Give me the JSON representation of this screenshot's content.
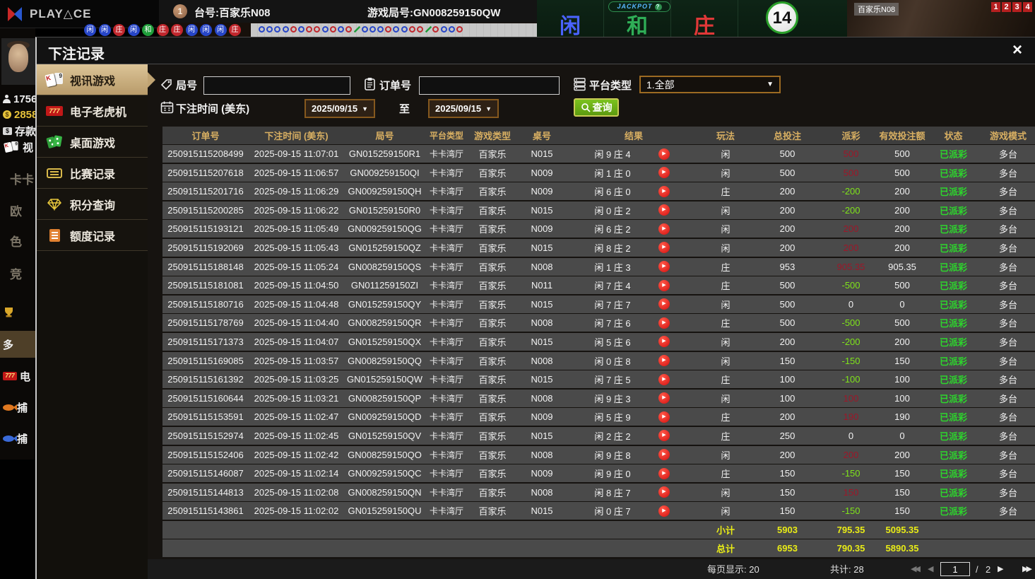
{
  "background": {
    "logo_text": "PLAY△CE",
    "table_label": "台号:百家乐N08",
    "round_label": "游戏局号:GN008259150QW",
    "round_badge": "1",
    "jackpot_label": "JACKPOT",
    "jackpot_hint": "?",
    "bet_zones": [
      {
        "label": "闲",
        "color": "#4a63ff"
      },
      {
        "label": "和",
        "color": "#2fae57"
      },
      {
        "label": "庄",
        "color": "#e03838"
      }
    ],
    "timer_value": "14",
    "video_label": "百家乐N08",
    "video_numbers": [
      "1",
      "2",
      "3",
      "4"
    ],
    "road": {
      "solid_beads": [
        {
          "color": "#2746c8",
          "char": "闲"
        },
        {
          "color": "#2746c8",
          "char": "闲"
        },
        {
          "color": "#c1272d",
          "char": "庄"
        },
        {
          "color": "#2746c8",
          "char": "闲"
        },
        {
          "color": "#1f9e3a",
          "char": "和"
        },
        {
          "color": "#c1272d",
          "char": "庄"
        },
        {
          "color": "#c1272d",
          "char": "庄"
        },
        {
          "color": "#2746c8",
          "char": "闲"
        },
        {
          "color": "#2746c8",
          "char": "闲"
        },
        {
          "color": "#2746c8",
          "char": "闲"
        },
        {
          "color": "#c1272d",
          "char": "庄"
        }
      ],
      "ring_beads": [
        "blue",
        "blue",
        "blue",
        "blue",
        "red",
        "blue",
        "red",
        "red",
        "blue",
        "red",
        "blue",
        "red",
        "green",
        "blue",
        "blue",
        "blue",
        "red",
        "blue",
        "blue",
        "red",
        "red",
        "green",
        "red",
        "blue",
        "blue",
        "red"
      ],
      "ring_colors": {
        "blue": "#2746c8",
        "red": "#c1272d",
        "green": "#1f9e3a"
      }
    },
    "left_nav": {
      "stats": [
        {
          "icon": "user",
          "label": "1756",
          "gold": false
        },
        {
          "icon": "coins",
          "label": "2858",
          "gold": true
        },
        {
          "icon": "deposit",
          "label": "存款",
          "gold": false
        }
      ],
      "items": [
        {
          "icon": "cards",
          "label": "视",
          "style": "bright"
        },
        {
          "icon": "",
          "label": "卡卡",
          "style": "dim"
        },
        {
          "icon": "",
          "label": "欧",
          "style": "dim"
        },
        {
          "icon": "",
          "label": "色",
          "style": "dim"
        },
        {
          "icon": "",
          "label": "竞",
          "style": "dim"
        },
        {
          "icon": "trophy",
          "label": "",
          "style": "dim"
        },
        {
          "icon": "",
          "label": "多",
          "style": "hl"
        },
        {
          "icon": "slot",
          "label": "电",
          "style": "bright"
        },
        {
          "icon": "fish-orange",
          "label": "捕",
          "style": "bright"
        },
        {
          "icon": "fish-blue",
          "label": "捕",
          "style": "bright"
        }
      ]
    }
  },
  "dialog": {
    "title": "下注记录",
    "close_glyph": "×",
    "sidebar": [
      {
        "label": "视讯游戏",
        "icon": "cards",
        "active": true
      },
      {
        "label": "电子老虎机",
        "icon": "slot777",
        "active": false
      },
      {
        "label": "桌面游戏",
        "icon": "dominoes",
        "active": false
      },
      {
        "label": "比赛记录",
        "icon": "ticket",
        "active": false
      },
      {
        "label": "积分查询",
        "icon": "diamond",
        "active": false
      },
      {
        "label": "额度记录",
        "icon": "document",
        "active": false
      }
    ],
    "filters": {
      "round_label": "局号",
      "round_value": "",
      "order_label": "订单号",
      "order_value": "",
      "platform_label": "平台类型",
      "platform_value": "1.全部",
      "caret": "▼",
      "time_label": "下注时间 (美东)",
      "date_from": "2025/09/15",
      "to_word": "至",
      "date_to": "2025/09/15",
      "search_label": "查询"
    },
    "table": {
      "headers": [
        "订单号",
        "下注时间 (美东)",
        "局号",
        "平台类型",
        "游戏类型",
        "桌号",
        "结果",
        "玩法",
        "总投注",
        "派彩",
        "有效投注额",
        "状态",
        "游戏模式"
      ],
      "play_glyph": "▶",
      "rows": [
        {
          "order": "250915115208499",
          "time": "2025-09-15 11:07:01",
          "round": "GN015259150R1",
          "platform": "卡卡湾厅",
          "game": "百家乐",
          "table": "N015",
          "result": "闲 9 庄 4",
          "bet": "闲",
          "total": "500",
          "payout": "500",
          "pc": "win",
          "valid": "500",
          "status": "已派彩",
          "mode": "多台"
        },
        {
          "order": "250915115207618",
          "time": "2025-09-15 11:06:57",
          "round": "GN009259150QI",
          "platform": "卡卡湾厅",
          "game": "百家乐",
          "table": "N009",
          "result": "闲 1 庄 0",
          "bet": "闲",
          "total": "500",
          "payout": "500",
          "pc": "win",
          "valid": "500",
          "status": "已派彩",
          "mode": "多台"
        },
        {
          "order": "250915115201716",
          "time": "2025-09-15 11:06:29",
          "round": "GN009259150QH",
          "platform": "卡卡湾厅",
          "game": "百家乐",
          "table": "N009",
          "result": "闲 6 庄 0",
          "bet": "庄",
          "total": "200",
          "payout": "-200",
          "pc": "loss",
          "valid": "200",
          "status": "已派彩",
          "mode": "多台"
        },
        {
          "order": "250915115200285",
          "time": "2025-09-15 11:06:22",
          "round": "GN015259150R0",
          "platform": "卡卡湾厅",
          "game": "百家乐",
          "table": "N015",
          "result": "闲 0 庄 2",
          "bet": "闲",
          "total": "200",
          "payout": "-200",
          "pc": "loss",
          "valid": "200",
          "status": "已派彩",
          "mode": "多台"
        },
        {
          "order": "250915115193121",
          "time": "2025-09-15 11:05:49",
          "round": "GN009259150QG",
          "platform": "卡卡湾厅",
          "game": "百家乐",
          "table": "N009",
          "result": "闲 6 庄 2",
          "bet": "闲",
          "total": "200",
          "payout": "200",
          "pc": "win",
          "valid": "200",
          "status": "已派彩",
          "mode": "多台"
        },
        {
          "order": "250915115192069",
          "time": "2025-09-15 11:05:43",
          "round": "GN015259150QZ",
          "platform": "卡卡湾厅",
          "game": "百家乐",
          "table": "N015",
          "result": "闲 8 庄 2",
          "bet": "闲",
          "total": "200",
          "payout": "200",
          "pc": "win",
          "valid": "200",
          "status": "已派彩",
          "mode": "多台"
        },
        {
          "order": "250915115188148",
          "time": "2025-09-15 11:05:24",
          "round": "GN008259150QS",
          "platform": "卡卡湾厅",
          "game": "百家乐",
          "table": "N008",
          "result": "闲 1 庄 3",
          "bet": "庄",
          "total": "953",
          "payout": "905.35",
          "pc": "win",
          "valid": "905.35",
          "status": "已派彩",
          "mode": "多台"
        },
        {
          "order": "250915115181081",
          "time": "2025-09-15 11:04:50",
          "round": "GN011259150ZI",
          "platform": "卡卡湾厅",
          "game": "百家乐",
          "table": "N011",
          "result": "闲 7 庄 4",
          "bet": "庄",
          "total": "500",
          "payout": "-500",
          "pc": "loss",
          "valid": "500",
          "status": "已派彩",
          "mode": "多台"
        },
        {
          "order": "250915115180716",
          "time": "2025-09-15 11:04:48",
          "round": "GN015259150QY",
          "platform": "卡卡湾厅",
          "game": "百家乐",
          "table": "N015",
          "result": "闲 7 庄 7",
          "bet": "闲",
          "total": "500",
          "payout": "0",
          "pc": "zero",
          "valid": "0",
          "status": "已派彩",
          "mode": "多台"
        },
        {
          "order": "250915115178769",
          "time": "2025-09-15 11:04:40",
          "round": "GN008259150QR",
          "platform": "卡卡湾厅",
          "game": "百家乐",
          "table": "N008",
          "result": "闲 7 庄 6",
          "bet": "庄",
          "total": "500",
          "payout": "-500",
          "pc": "loss",
          "valid": "500",
          "status": "已派彩",
          "mode": "多台"
        },
        {
          "order": "250915115171373",
          "time": "2025-09-15 11:04:07",
          "round": "GN015259150QX",
          "platform": "卡卡湾厅",
          "game": "百家乐",
          "table": "N015",
          "result": "闲 5 庄 6",
          "bet": "闲",
          "total": "200",
          "payout": "-200",
          "pc": "loss",
          "valid": "200",
          "status": "已派彩",
          "mode": "多台"
        },
        {
          "order": "250915115169085",
          "time": "2025-09-15 11:03:57",
          "round": "GN008259150QQ",
          "platform": "卡卡湾厅",
          "game": "百家乐",
          "table": "N008",
          "result": "闲 0 庄 8",
          "bet": "闲",
          "total": "150",
          "payout": "-150",
          "pc": "loss",
          "valid": "150",
          "status": "已派彩",
          "mode": "多台"
        },
        {
          "order": "250915115161392",
          "time": "2025-09-15 11:03:25",
          "round": "GN015259150QW",
          "platform": "卡卡湾厅",
          "game": "百家乐",
          "table": "N015",
          "result": "闲 7 庄 5",
          "bet": "庄",
          "total": "100",
          "payout": "-100",
          "pc": "loss",
          "valid": "100",
          "status": "已派彩",
          "mode": "多台"
        },
        {
          "order": "250915115160644",
          "time": "2025-09-15 11:03:21",
          "round": "GN008259150QP",
          "platform": "卡卡湾厅",
          "game": "百家乐",
          "table": "N008",
          "result": "闲 9 庄 3",
          "bet": "闲",
          "total": "100",
          "payout": "100",
          "pc": "win",
          "valid": "100",
          "status": "已派彩",
          "mode": "多台"
        },
        {
          "order": "250915115153591",
          "time": "2025-09-15 11:02:47",
          "round": "GN009259150QD",
          "platform": "卡卡湾厅",
          "game": "百家乐",
          "table": "N009",
          "result": "闲 5 庄 9",
          "bet": "庄",
          "total": "200",
          "payout": "190",
          "pc": "win",
          "valid": "190",
          "status": "已派彩",
          "mode": "多台"
        },
        {
          "order": "250915115152974",
          "time": "2025-09-15 11:02:45",
          "round": "GN015259150QV",
          "platform": "卡卡湾厅",
          "game": "百家乐",
          "table": "N015",
          "result": "闲 2 庄 2",
          "bet": "庄",
          "total": "250",
          "payout": "0",
          "pc": "zero",
          "valid": "0",
          "status": "已派彩",
          "mode": "多台"
        },
        {
          "order": "250915115152406",
          "time": "2025-09-15 11:02:42",
          "round": "GN008259150QO",
          "platform": "卡卡湾厅",
          "game": "百家乐",
          "table": "N008",
          "result": "闲 9 庄 8",
          "bet": "闲",
          "total": "200",
          "payout": "200",
          "pc": "win",
          "valid": "200",
          "status": "已派彩",
          "mode": "多台"
        },
        {
          "order": "250915115146087",
          "time": "2025-09-15 11:02:14",
          "round": "GN009259150QC",
          "platform": "卡卡湾厅",
          "game": "百家乐",
          "table": "N009",
          "result": "闲 9 庄 0",
          "bet": "庄",
          "total": "150",
          "payout": "-150",
          "pc": "loss",
          "valid": "150",
          "status": "已派彩",
          "mode": "多台"
        },
        {
          "order": "250915115144813",
          "time": "2025-09-15 11:02:08",
          "round": "GN008259150QN",
          "platform": "卡卡湾厅",
          "game": "百家乐",
          "table": "N008",
          "result": "闲 8 庄 7",
          "bet": "闲",
          "total": "150",
          "payout": "150",
          "pc": "win",
          "valid": "150",
          "status": "已派彩",
          "mode": "多台"
        },
        {
          "order": "250915115143861",
          "time": "2025-09-15 11:02:02",
          "round": "GN015259150QU",
          "platform": "卡卡湾厅",
          "game": "百家乐",
          "table": "N015",
          "result": "闲 0 庄 7",
          "bet": "闲",
          "total": "150",
          "payout": "-150",
          "pc": "loss",
          "valid": "150",
          "status": "已派彩",
          "mode": "多台"
        }
      ],
      "subtotal": {
        "label": "小计",
        "total": "5903",
        "payout": "795.35",
        "valid": "5095.35"
      },
      "grand_total": {
        "label": "总计",
        "total": "6953",
        "payout": "790.35",
        "valid": "5890.35"
      }
    },
    "footer": {
      "page_size_label": "每页显示: 20",
      "total_count_label": "共计: 28",
      "first_glyph": "◀◀",
      "prev_glyph": "◀",
      "page_value": "1",
      "separator": "/",
      "page_count": "2",
      "next_glyph": "▶",
      "last_glyph": "▶▶"
    }
  }
}
